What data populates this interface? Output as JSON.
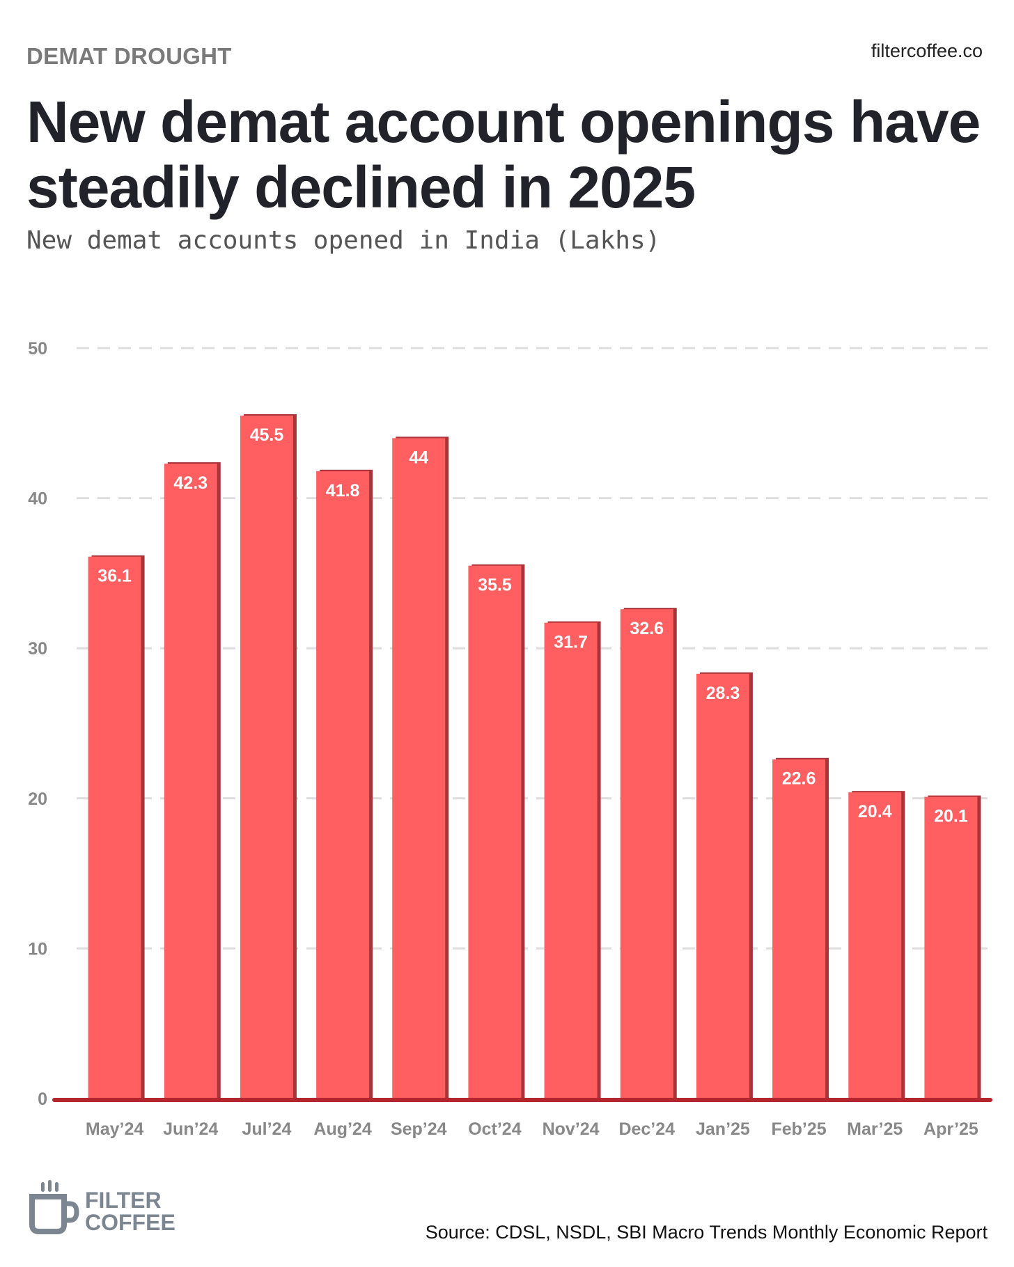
{
  "header": {
    "kicker": "DEMAT DROUGHT",
    "brand_url": "filtercoffee.co",
    "title": "New demat account openings have steadily declined in 2025",
    "subtitle": "New demat accounts opened in India (Lakhs)"
  },
  "footer": {
    "logo_line1": "FILTER",
    "logo_line2": "COFFEE",
    "source": "Source: CDSL, NSDL, SBI Macro Trends Monthly Economic Report"
  },
  "colors": {
    "bar": "#ff5f61",
    "bar_shadow": "#a8343a",
    "axis": "#b3262e",
    "grid": "#dddddd",
    "logo": "#7b8691"
  },
  "chart_data": {
    "type": "bar",
    "title": "New demat accounts opened in India (Lakhs)",
    "categories": [
      "May’24",
      "Jun’24",
      "Jul’24",
      "Aug’24",
      "Sep’24",
      "Oct’24",
      "Nov’24",
      "Dec’24",
      "Jan’25",
      "Feb’25",
      "Mar’25",
      "Apr’25"
    ],
    "values": [
      36.1,
      42.3,
      45.5,
      41.8,
      44,
      35.5,
      31.7,
      32.6,
      28.3,
      22.6,
      20.4,
      20.1
    ],
    "value_labels": [
      "36.1",
      "42.3",
      "45.5",
      "41.8",
      "44",
      "35.5",
      "31.7",
      "32.6",
      "28.3",
      "22.6",
      "20.4",
      "20.1"
    ],
    "yticks": [
      0,
      10,
      20,
      30,
      40,
      50
    ],
    "ylim": [
      0,
      50
    ],
    "grid": true,
    "legend": false
  }
}
